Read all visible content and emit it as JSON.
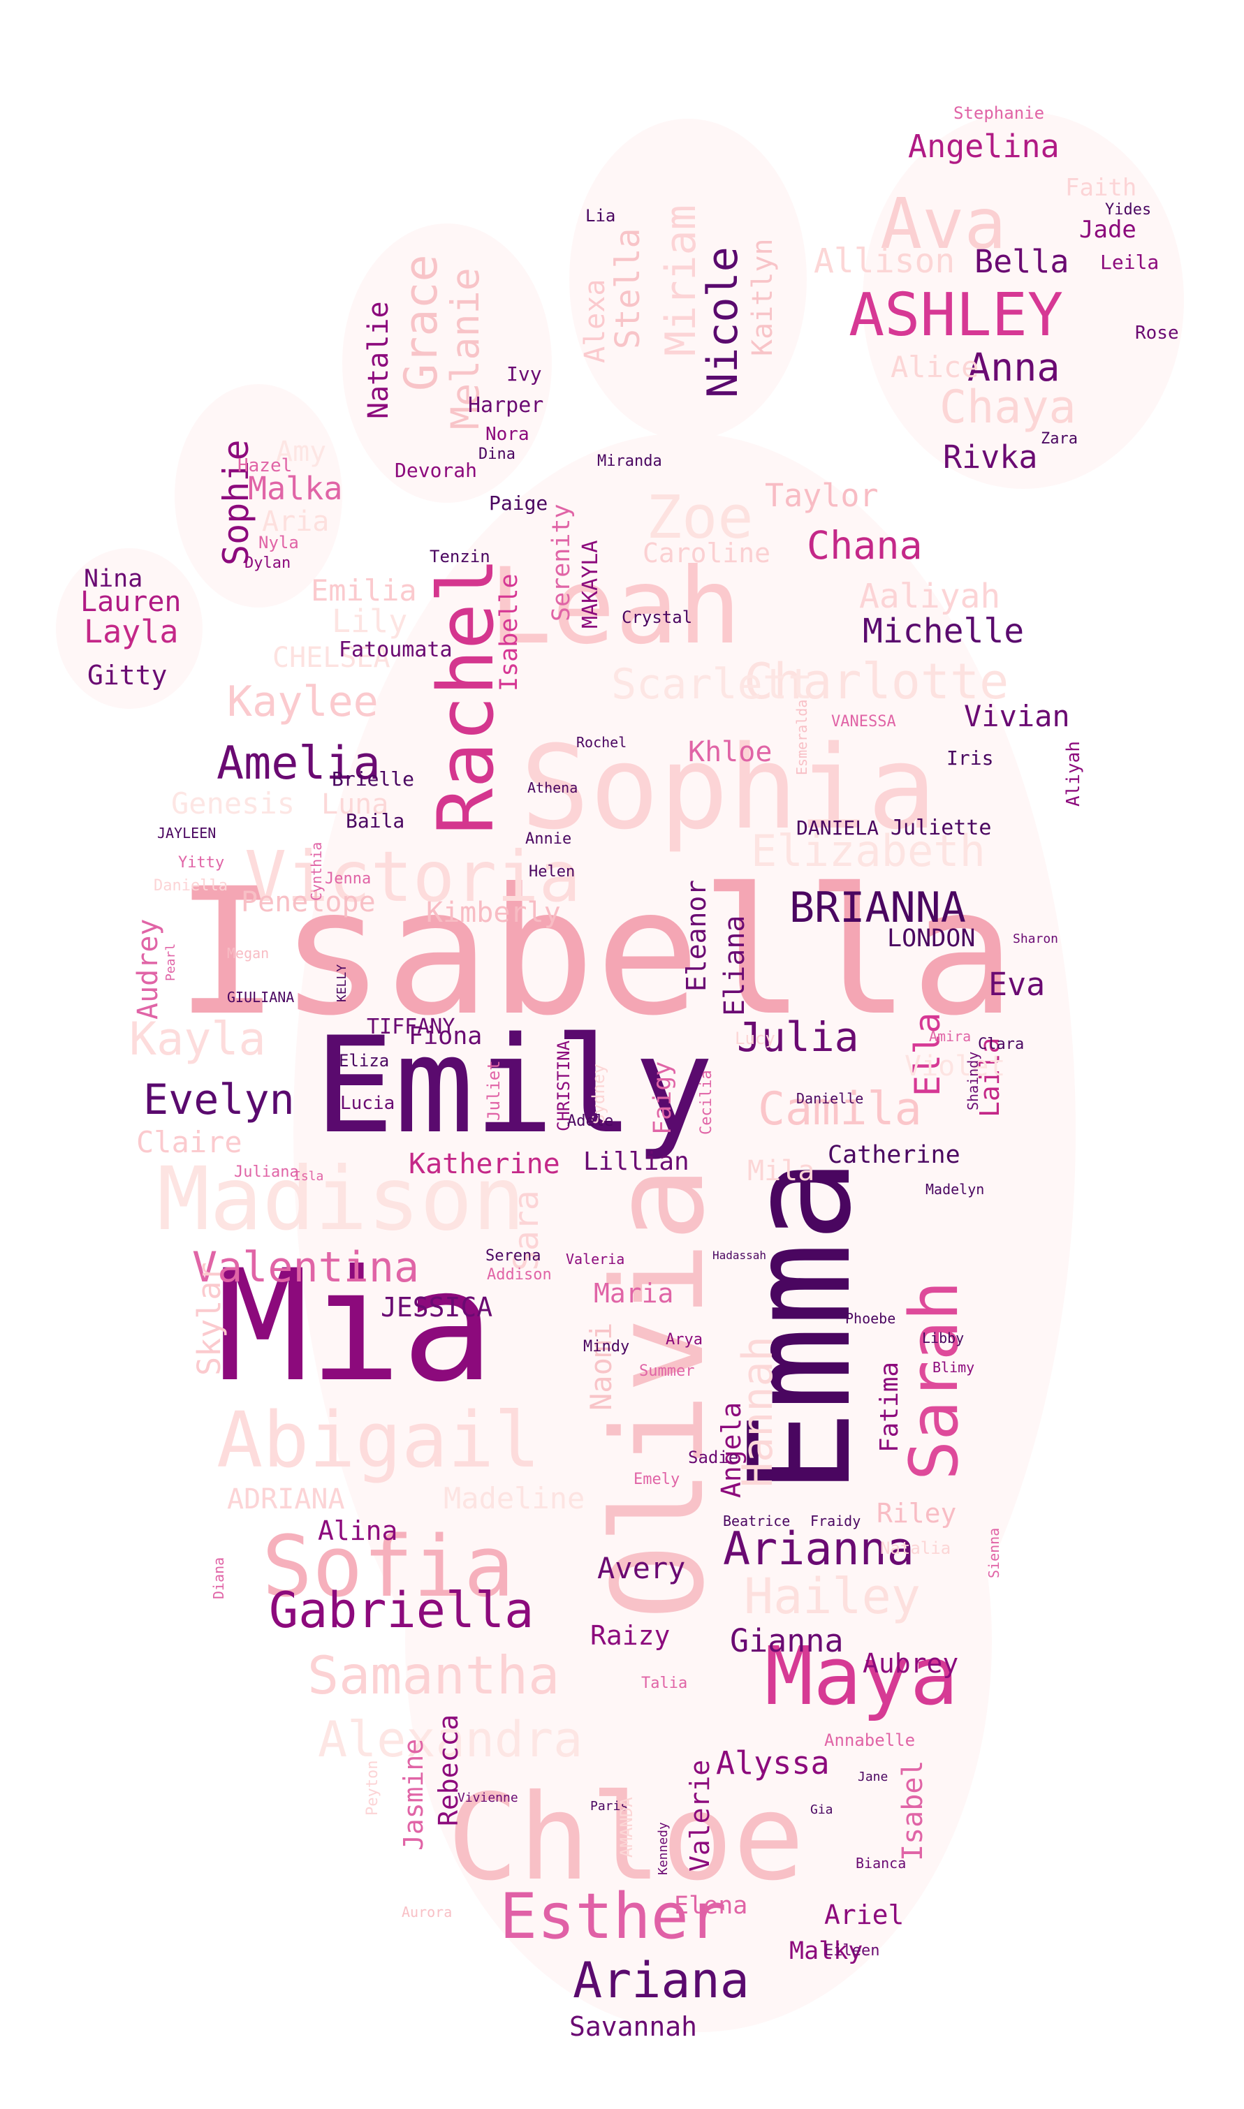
{
  "words": [
    {
      "text": "Isabella",
      "color": "#f4a6b4"
    },
    {
      "text": "Emily",
      "color": "#5a0a6e"
    },
    {
      "text": "Mia",
      "color": "#8c0a7c"
    },
    {
      "text": "Emma",
      "color": "#4a0660"
    },
    {
      "text": "Olivia",
      "color": "#f8c2c8"
    },
    {
      "text": "Sophia",
      "color": "#fcd4d6"
    },
    {
      "text": "Chloe",
      "color": "#f8c0c6"
    },
    {
      "text": "Leah",
      "color": "#fbc9cd"
    },
    {
      "text": "Madison",
      "color": "#fde4e2"
    },
    {
      "text": "Abigail",
      "color": "#fddcdc"
    },
    {
      "text": "Sofia",
      "color": "#f6b0bc"
    },
    {
      "text": "Sarah",
      "color": "#de4a9a"
    },
    {
      "text": "Maya",
      "color": "#d63a94"
    },
    {
      "text": "Rachel",
      "color": "#d4368e"
    },
    {
      "text": "Victoria",
      "color": "#fddcdc"
    },
    {
      "text": "Ava",
      "color": "#fbd0d2"
    },
    {
      "text": "ASHLEY",
      "color": "#d63894"
    },
    {
      "text": "Esther",
      "color": "#e060a6"
    },
    {
      "text": "Ariana",
      "color": "#5a0a6e"
    },
    {
      "text": "Samantha",
      "color": "#fcd2d4"
    },
    {
      "text": "Gabriella",
      "color": "#8c0a7c"
    },
    {
      "text": "Arianna",
      "color": "#6a0a72"
    },
    {
      "text": "Valentina",
      "color": "#e064a6"
    },
    {
      "text": "Evelyn",
      "color": "#5a0a6e"
    },
    {
      "text": "Amelia",
      "color": "#6a0a72"
    },
    {
      "text": "BRIANNA",
      "color": "#4a0660"
    },
    {
      "text": "Julia",
      "color": "#6a0a72"
    },
    {
      "text": "Camila",
      "color": "#fbc6ca"
    },
    {
      "text": "Hailey",
      "color": "#fde0de"
    },
    {
      "text": "Alexandra",
      "color": "#fde6e4"
    },
    {
      "text": "Charlotte",
      "color": "#fde2e0"
    },
    {
      "text": "Elizabeth",
      "color": "#fde4e2"
    },
    {
      "text": "Hannah",
      "color": "#fcd8d8"
    },
    {
      "text": "Kaylee",
      "color": "#fbcace"
    },
    {
      "text": "Kayla",
      "color": "#fddcdc"
    },
    {
      "text": "Zoe",
      "color": "#fde2e0"
    },
    {
      "text": "Scarlett",
      "color": "#fde6e4"
    },
    {
      "text": "Chaya",
      "color": "#fcd6d6"
    },
    {
      "text": "Anna",
      "color": "#6a0a72"
    },
    {
      "text": "Bella",
      "color": "#6a0a72"
    },
    {
      "text": "Angelina",
      "color": "#b01a84"
    },
    {
      "text": "Allison",
      "color": "#fcd6d6"
    },
    {
      "text": "Alice",
      "color": "#fcd6d6"
    },
    {
      "text": "Rivka",
      "color": "#6a0a72"
    },
    {
      "text": "Chana",
      "color": "#c42888"
    },
    {
      "text": "Taylor",
      "color": "#f8bcc4"
    },
    {
      "text": "Caroline",
      "color": "#fbd0d2"
    },
    {
      "text": "Aaliyah",
      "color": "#fcd4d6"
    },
    {
      "text": "Michelle",
      "color": "#5a0a6e"
    },
    {
      "text": "Vivian",
      "color": "#6a0a72"
    },
    {
      "text": "Grace",
      "color": "#f8c4c8"
    },
    {
      "text": "Melanie",
      "color": "#f8c4c8"
    },
    {
      "text": "Natalie",
      "color": "#8c0a7c"
    },
    {
      "text": "Miriam",
      "color": "#fcd4d6"
    },
    {
      "text": "Stella",
      "color": "#f8c4c8"
    },
    {
      "text": "Nicole",
      "color": "#5a0a6e"
    },
    {
      "text": "Kaitlyn",
      "color": "#f8c4c8"
    },
    {
      "text": "Alexa",
      "color": "#fbcace"
    },
    {
      "text": "Sophie",
      "color": "#8c0a7c"
    },
    {
      "text": "Malka",
      "color": "#e064a6"
    },
    {
      "text": "Aria",
      "color": "#fde0de"
    },
    {
      "text": "Amy",
      "color": "#fde6e4"
    },
    {
      "text": "Emilia",
      "color": "#fbcace"
    },
    {
      "text": "Lily",
      "color": "#fde4e2"
    },
    {
      "text": "CHELSEA",
      "color": "#fde2e0"
    },
    {
      "text": "Genesis",
      "color": "#fde6e4"
    },
    {
      "text": "Luna",
      "color": "#fcd8d8"
    },
    {
      "text": "Penelope",
      "color": "#f8c0c6"
    },
    {
      "text": "Kimberly",
      "color": "#f8bcc4"
    },
    {
      "text": "Layla",
      "color": "#c42888"
    },
    {
      "text": "Lauren",
      "color": "#b01a84"
    },
    {
      "text": "Nina",
      "color": "#6a0a72"
    },
    {
      "text": "Gitty",
      "color": "#6a0a72"
    },
    {
      "text": "Audrey",
      "color": "#e064a6"
    },
    {
      "text": "Claire",
      "color": "#fbcace"
    },
    {
      "text": "Fiona",
      "color": "#6a0a72"
    },
    {
      "text": "Katherine",
      "color": "#c42888"
    },
    {
      "text": "Lillian",
      "color": "#6a0a72"
    },
    {
      "text": "Catherine",
      "color": "#4a0660"
    },
    {
      "text": "Eva",
      "color": "#6a0a72"
    },
    {
      "text": "Ella",
      "color": "#d63894"
    },
    {
      "text": "Laila",
      "color": "#c42888"
    },
    {
      "text": "LONDON",
      "color": "#4a0660"
    },
    {
      "text": "Eliana",
      "color": "#6a0a72"
    },
    {
      "text": "Eleanor",
      "color": "#6a0a72"
    },
    {
      "text": "Khloe",
      "color": "#e064a6"
    },
    {
      "text": "Serenity",
      "color": "#e064a6"
    },
    {
      "text": "Isabelle",
      "color": "#d63894"
    },
    {
      "text": "MAKAYLA",
      "color": "#8c0a7c"
    },
    {
      "text": "Angela",
      "color": "#8c0a7c"
    },
    {
      "text": "Faigy",
      "color": "#e064a6"
    },
    {
      "text": "Violet",
      "color": "#fde4e2"
    },
    {
      "text": "Mila",
      "color": "#fcd6d6"
    },
    {
      "text": "Maria",
      "color": "#e064a6"
    },
    {
      "text": "JESSICA",
      "color": "#6a0a72"
    },
    {
      "text": "Skylar",
      "color": "#fbcace"
    },
    {
      "text": "Sara",
      "color": "#fcd4d6"
    },
    {
      "text": "Naomi",
      "color": "#f8c4c8"
    },
    {
      "text": "Madeline",
      "color": "#fde4e2"
    },
    {
      "text": "ADRIANA",
      "color": "#fcd4d6"
    },
    {
      "text": "Alina",
      "color": "#8c0a7c"
    },
    {
      "text": "Avery",
      "color": "#6a0a72"
    },
    {
      "text": "Gianna",
      "color": "#6a0a72"
    },
    {
      "text": "Aubrey",
      "color": "#8c0a7c"
    },
    {
      "text": "Riley",
      "color": "#f8bcc4"
    },
    {
      "text": "Raizy",
      "color": "#8c0a7c"
    },
    {
      "text": "Alyssa",
      "color": "#8c0a7c"
    },
    {
      "text": "Rebecca",
      "color": "#8c0a7c"
    },
    {
      "text": "Jasmine",
      "color": "#e064a6"
    },
    {
      "text": "Valerie",
      "color": "#8c0a7c"
    },
    {
      "text": "Isabel",
      "color": "#e064a6"
    },
    {
      "text": "Elena",
      "color": "#e064a6"
    },
    {
      "text": "Ariel",
      "color": "#8c0a7c"
    },
    {
      "text": "Malky",
      "color": "#8c0a7c"
    },
    {
      "text": "Savannah",
      "color": "#6a0a72"
    },
    {
      "text": "Fatima",
      "color": "#8c0a7c"
    },
    {
      "text": "Juliette",
      "color": "#4a0660"
    },
    {
      "text": "DANIELA",
      "color": "#4a0660"
    },
    {
      "text": "Iris",
      "color": "#4a0660"
    },
    {
      "text": "Aliyah",
      "color": "#8c0a7c"
    },
    {
      "text": "Brielle",
      "color": "#4a0660"
    },
    {
      "text": "Fatoumata",
      "color": "#6a0a72"
    },
    {
      "text": "Baila",
      "color": "#4a0660"
    },
    {
      "text": "Helen",
      "color": "#4a0660"
    },
    {
      "text": "Annie",
      "color": "#4a0660"
    },
    {
      "text": "Paige",
      "color": "#4a0660"
    },
    {
      "text": "Tenzin",
      "color": "#4a0660"
    },
    {
      "text": "Harper",
      "color": "#6a0a72"
    },
    {
      "text": "Nora",
      "color": "#8c0a7c"
    },
    {
      "text": "Dina",
      "color": "#4a0660"
    },
    {
      "text": "Ivy",
      "color": "#6a0a72"
    },
    {
      "text": "Devorah",
      "color": "#8c0a7c"
    },
    {
      "text": "Hazel",
      "color": "#e064a6"
    },
    {
      "text": "Nyla",
      "color": "#e064a6"
    },
    {
      "text": "Dylan",
      "color": "#8c0a7c"
    },
    {
      "text": "Jade",
      "color": "#8c0a7c"
    },
    {
      "text": "Leila",
      "color": "#8c0a7c"
    },
    {
      "text": "Rose",
      "color": "#6a0a72"
    },
    {
      "text": "Faith",
      "color": "#fcd4d6"
    },
    {
      "text": "Zara",
      "color": "#4a0660"
    },
    {
      "text": "Crystal",
      "color": "#4a0660"
    },
    {
      "text": "Miranda",
      "color": "#4a0660"
    },
    {
      "text": "Lia",
      "color": "#4a0660"
    },
    {
      "text": "Yides",
      "color": "#4a0660"
    },
    {
      "text": "Stephanie",
      "color": "#e064a6"
    },
    {
      "text": "TIFFANY",
      "color": "#6a0a72"
    },
    {
      "text": "Eliza",
      "color": "#4a0660"
    },
    {
      "text": "Lucia",
      "color": "#6a0a72"
    },
    {
      "text": "Juliet",
      "color": "#e064a6"
    },
    {
      "text": "Sydney",
      "color": "#fcd6d6"
    },
    {
      "text": "CHRISTINA",
      "color": "#8c0a7c"
    },
    {
      "text": "Adele",
      "color": "#4a0660"
    },
    {
      "text": "Cecilia",
      "color": "#e064a6"
    },
    {
      "text": "Lucy",
      "color": "#fcd6d6"
    },
    {
      "text": "Serena",
      "color": "#4a0660"
    },
    {
      "text": "Addison",
      "color": "#e064a6"
    },
    {
      "text": "Valeria",
      "color": "#8c0a7c"
    },
    {
      "text": "Arya",
      "color": "#8c0a7c"
    },
    {
      "text": "Summer",
      "color": "#e064a6"
    },
    {
      "text": "Mindy",
      "color": "#4a0660"
    },
    {
      "text": "Sadie",
      "color": "#6a0a72"
    },
    {
      "text": "Emely",
      "color": "#e064a6"
    },
    {
      "text": "Beatrice",
      "color": "#4a0660"
    },
    {
      "text": "Fraidy",
      "color": "#4a0660"
    },
    {
      "text": "Annabelle",
      "color": "#e064a6"
    },
    {
      "text": "Natalia",
      "color": "#fcd6d6"
    },
    {
      "text": "Sienna",
      "color": "#e064a6"
    },
    {
      "text": "Phoebe",
      "color": "#4a0660"
    },
    {
      "text": "Libby",
      "color": "#4a0660"
    },
    {
      "text": "Blimy",
      "color": "#8c0a7c"
    },
    {
      "text": "Clara",
      "color": "#4a0660"
    },
    {
      "text": "Amira",
      "color": "#e064a6"
    },
    {
      "text": "Shaindy",
      "color": "#6a0a72"
    },
    {
      "text": "Madelyn",
      "color": "#4a0660"
    },
    {
      "text": "Danielle",
      "color": "#4a0660"
    },
    {
      "text": "Jenna",
      "color": "#e064a6"
    },
    {
      "text": "Cynthia",
      "color": "#e064a6"
    },
    {
      "text": "Yitty",
      "color": "#e064a6"
    },
    {
      "text": "Daniella",
      "color": "#fcd4d6"
    },
    {
      "text": "JAYLEEN",
      "color": "#4a0660"
    },
    {
      "text": "GIULIANA",
      "color": "#4a0660"
    },
    {
      "text": "KELLY",
      "color": "#4a0660"
    },
    {
      "text": "Juliana",
      "color": "#e064a6"
    },
    {
      "text": "Isla",
      "color": "#e064a6"
    },
    {
      "text": "Megan",
      "color": "#f8bcc4"
    },
    {
      "text": "Pearl",
      "color": "#e064a6"
    },
    {
      "text": "Diana",
      "color": "#e064a6"
    },
    {
      "text": "Talia",
      "color": "#e064a6"
    },
    {
      "text": "Gia",
      "color": "#4a0660"
    },
    {
      "text": "Bianca",
      "color": "#6a0a72"
    },
    {
      "text": "Jane",
      "color": "#4a0660"
    },
    {
      "text": "Eileen",
      "color": "#6a0a72"
    },
    {
      "text": "Paris",
      "color": "#4a0660"
    },
    {
      "text": "Vivienne",
      "color": "#6a0a72"
    },
    {
      "text": "Kennedy",
      "color": "#6a0a72"
    },
    {
      "text": "AMANDA",
      "color": "#fcd6d6"
    },
    {
      "text": "Peyton",
      "color": "#fcd4d6"
    },
    {
      "text": "Aurora",
      "color": "#f8c0c6"
    },
    {
      "text": "Rochel",
      "color": "#4a0660"
    },
    {
      "text": "Athena",
      "color": "#4a0660"
    },
    {
      "text": "VANESSA",
      "color": "#e064a6"
    },
    {
      "text": "Esmeralda",
      "color": "#f8c0c6"
    },
    {
      "text": "Sharon",
      "color": "#6a0a72"
    },
    {
      "text": "Hadassah",
      "color": "#4a0660"
    }
  ]
}
